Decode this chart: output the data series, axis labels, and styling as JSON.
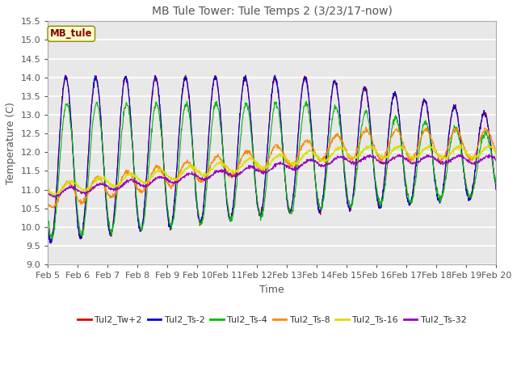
{
  "title": "MB Tule Tower: Tule Temps 2 (3/23/17-now)",
  "xlabel": "Time",
  "ylabel": "Temperature (C)",
  "ylim": [
    9.0,
    15.5
  ],
  "yticks": [
    9.0,
    9.5,
    10.0,
    10.5,
    11.0,
    11.5,
    12.0,
    12.5,
    13.0,
    13.5,
    14.0,
    14.5,
    15.0,
    15.5
  ],
  "legend_label": "MB_tule",
  "series_labels": [
    "Tul2_Tw+2",
    "Tul2_Ts-2",
    "Tul2_Ts-4",
    "Tul2_Ts-8",
    "Tul2_Ts-16",
    "Tul2_Ts-32"
  ],
  "series_colors": [
    "#dd0000",
    "#0000dd",
    "#00bb00",
    "#ff8800",
    "#dddd00",
    "#9900bb"
  ],
  "plot_bg": "#e8e8e8",
  "axes_bg": "#e8e8e8",
  "grid_color": "#ffffff",
  "outer_bg": "#ffffff",
  "title_fontsize": 10,
  "axis_fontsize": 9,
  "tick_fontsize": 8,
  "legend_fontsize": 8
}
